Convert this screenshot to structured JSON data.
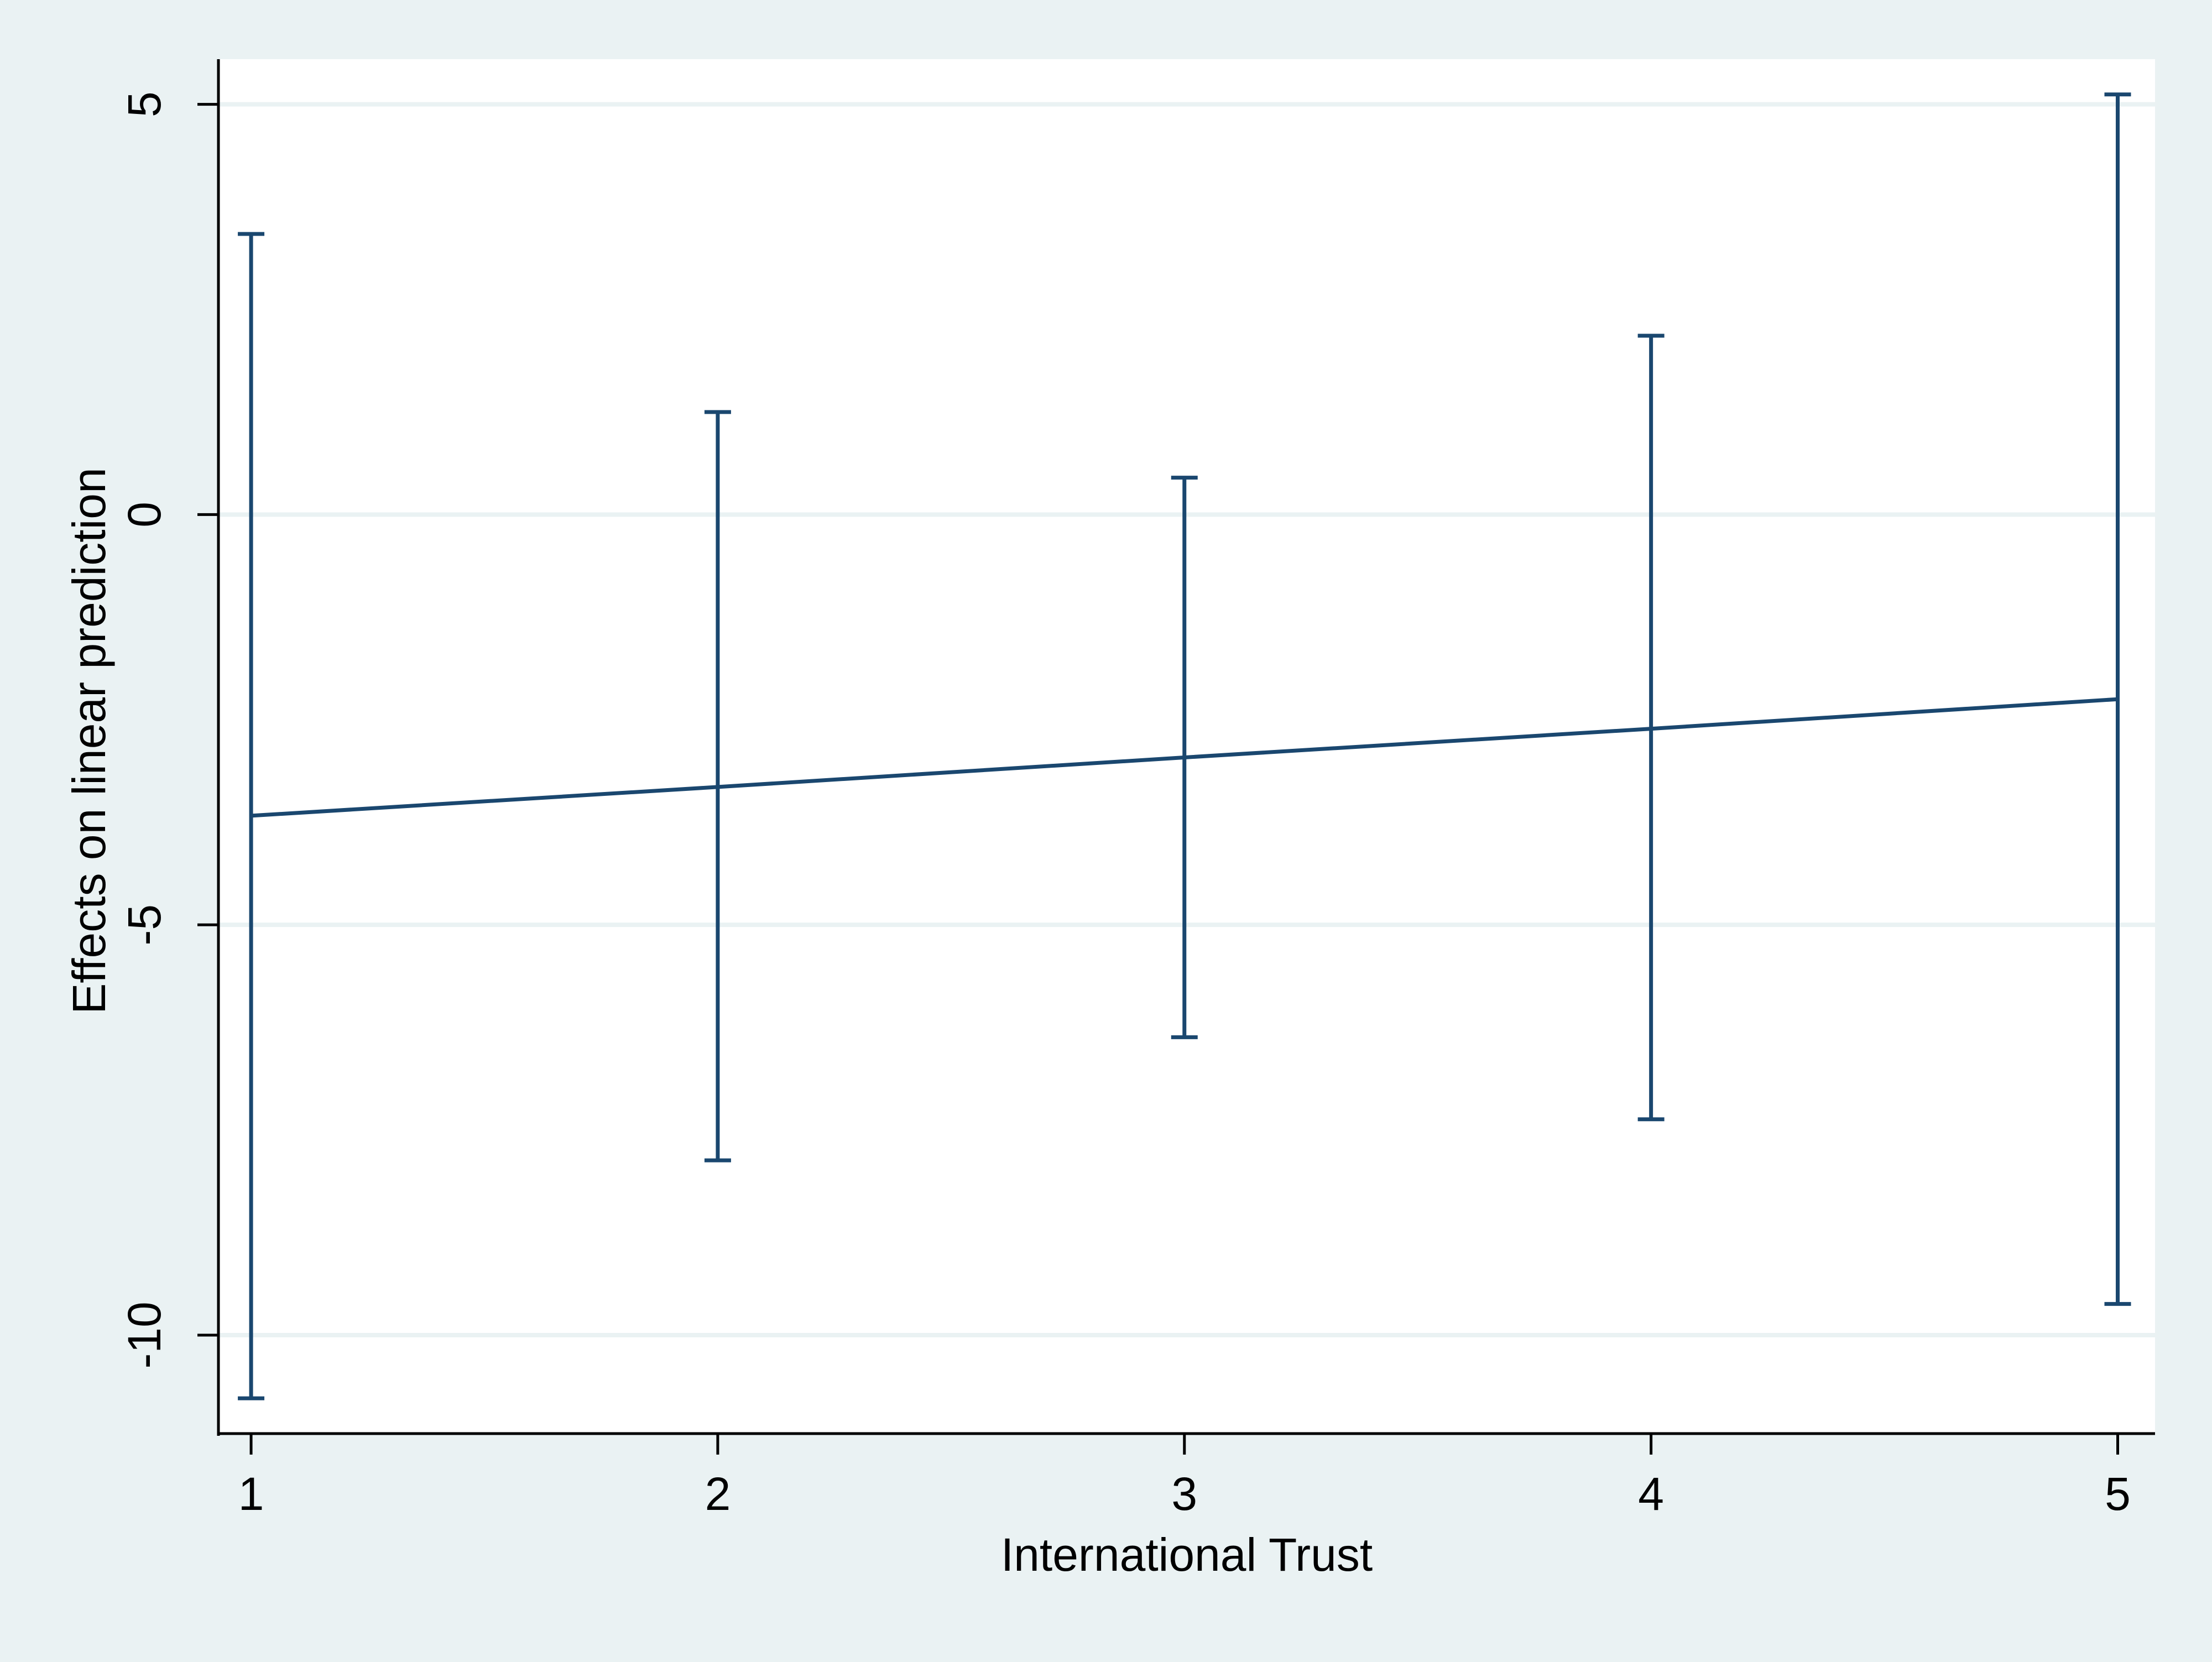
{
  "chart_data": {
    "type": "line",
    "title": "",
    "xlabel": "International Trust",
    "ylabel": "Effects on linear prediction",
    "x": [
      1,
      2,
      3,
      4,
      5
    ],
    "series": [
      {
        "values": [
          -3.67,
          -3.32,
          -2.96,
          -2.61,
          -2.25
        ],
        "ci_lower": [
          -10.77,
          -7.87,
          -6.37,
          -7.37,
          -9.62
        ],
        "ci_upper": [
          3.42,
          1.25,
          0.45,
          2.18,
          5.12
        ]
      }
    ],
    "xticks": [
      1,
      2,
      3,
      4,
      5
    ],
    "xtick_labels": [
      "1",
      "2",
      "3",
      "4",
      "5"
    ],
    "yticks": [
      -10,
      -5,
      0,
      5
    ],
    "ytick_labels": [
      "-10",
      "-5",
      "0",
      "5"
    ],
    "xlim": [
      0.93,
      5.08
    ],
    "ylim": [
      -11.2,
      5.55
    ],
    "grid": "horizontal",
    "legend": "none",
    "colors": {
      "series": "#1a476f",
      "gridline": "#eaf2f3",
      "plot_background": "#ffffff",
      "outer_background": "#eaf2f3",
      "axis": "#000000"
    }
  }
}
